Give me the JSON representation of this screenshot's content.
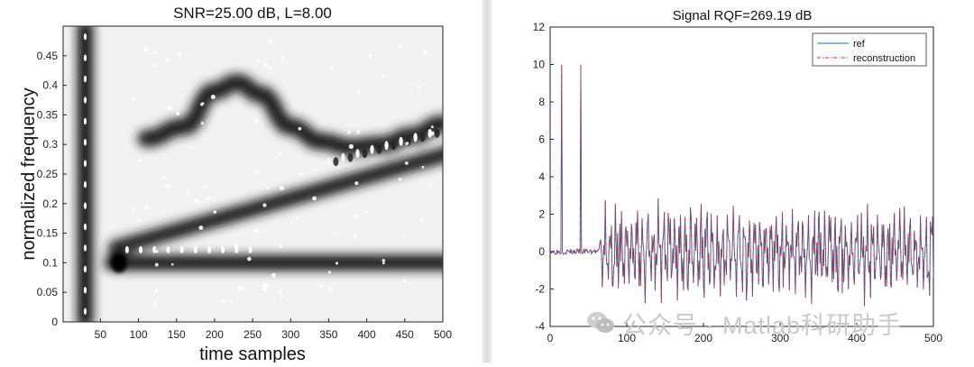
{
  "chart_data": [
    {
      "type": "heatmap",
      "title": "SNR=25.00 dB, L=8.00",
      "xlabel": "time samples",
      "ylabel": "normalized frequency",
      "xlim": [
        1,
        500
      ],
      "ylim": [
        0,
        0.5
      ],
      "xticks": [
        50,
        100,
        150,
        200,
        250,
        300,
        350,
        400,
        450,
        500
      ],
      "yticks": [
        0,
        0.05,
        0.1,
        0.15,
        0.2,
        0.25,
        0.3,
        0.35,
        0.4,
        0.45
      ],
      "colormap": "gray (inverted)",
      "components": [
        {
          "kind": "impulse",
          "time": 30
        },
        {
          "kind": "tone",
          "frequency": 0.1,
          "start": 65,
          "end": 500
        },
        {
          "kind": "linear-chirp",
          "start": [
            70,
            0.125
          ],
          "end": [
            500,
            0.28
          ]
        },
        {
          "kind": "sinusoidal-fm",
          "center": 0.335,
          "points": [
            [
              110,
              0.31
            ],
            [
              160,
              0.33
            ],
            [
              200,
              0.39
            ],
            [
              230,
              0.405
            ],
            [
              260,
              0.385
            ],
            [
              300,
              0.33
            ],
            [
              340,
              0.305
            ],
            [
              380,
              0.295
            ],
            [
              420,
              0.3
            ],
            [
              460,
              0.315
            ],
            [
              500,
              0.335
            ]
          ]
        }
      ]
    },
    {
      "type": "line",
      "title": "Signal RQF=269.19 dB",
      "xlim": [
        0,
        500
      ],
      "ylim": [
        -4,
        12
      ],
      "xticks": [
        0,
        100,
        200,
        300,
        400,
        500
      ],
      "yticks": [
        -4,
        -2,
        0,
        2,
        4,
        6,
        8,
        10,
        12
      ],
      "legend_position": "top-right",
      "series": [
        {
          "name": "ref",
          "color": "#0072BD",
          "style": "solid"
        },
        {
          "name": "reconstruction",
          "color": "#e3242b",
          "style": "dash-dot"
        }
      ],
      "spikes": [
        {
          "x": 15,
          "y": 10
        },
        {
          "x": 40,
          "y": 10
        }
      ],
      "noise_region": {
        "x": [
          0,
          65
        ],
        "level": 0.05
      },
      "oscillation_region": {
        "x": [
          65,
          500
        ],
        "range": [
          -2.9,
          2.9
        ]
      }
    }
  ],
  "watermark": {
    "text": "公众号 · Matlab科研助手",
    "icon": "wechat-icon"
  }
}
